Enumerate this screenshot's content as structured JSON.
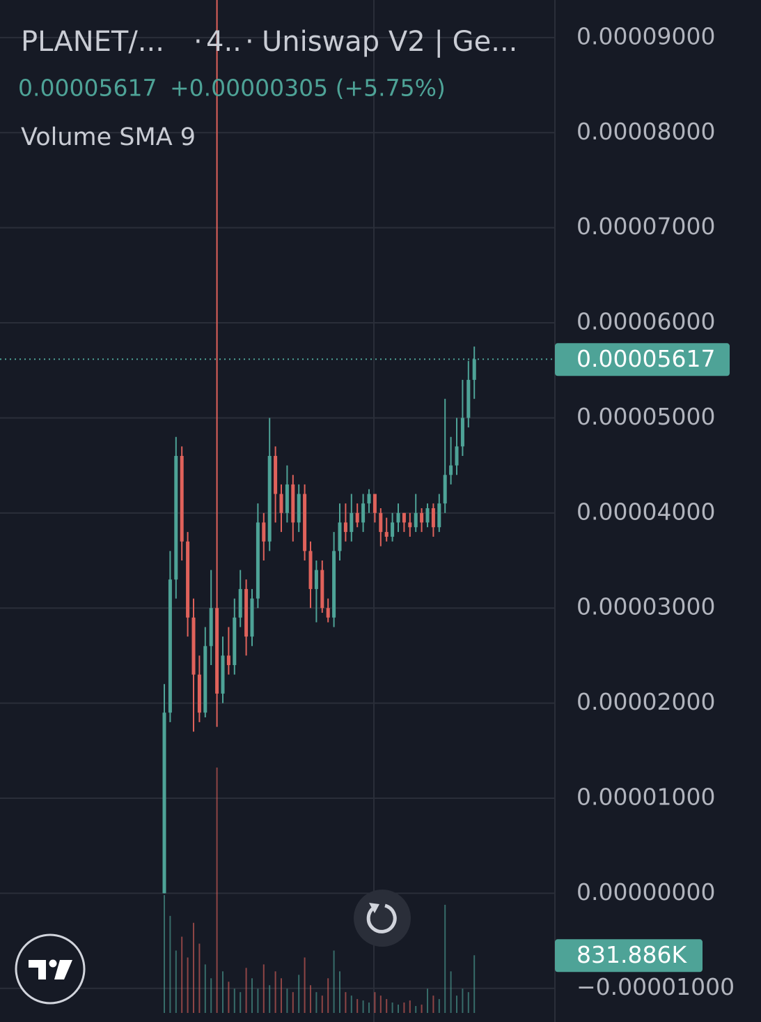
{
  "chart_data": {
    "type": "candlestick",
    "title": "PLANET/...",
    "interval": "4..",
    "exchange": "Uniswap V2 | Ge...",
    "last_price": "0.00005617",
    "change": "+0.00000305 (+5.75%)",
    "indicator": "Volume SMA 9",
    "price_label": "0.00005617",
    "volume_label": "831.886K",
    "up_color": "#4ea397",
    "down_color": "#e0625b",
    "grid": true,
    "ylim": [
      -1.2e-05,
      9.41e-05
    ],
    "yticks": [
      {
        "value": 9e-05,
        "label": "0.00009000"
      },
      {
        "value": 8e-05,
        "label": "0.00008000"
      },
      {
        "value": 7e-05,
        "label": "0.00007000"
      },
      {
        "value": 6e-05,
        "label": "0.00006000"
      },
      {
        "value": 5e-05,
        "label": "0.00005000"
      },
      {
        "value": 4e-05,
        "label": "0.00004000"
      },
      {
        "value": 3e-05,
        "label": "0.00003000"
      },
      {
        "value": 2e-05,
        "label": "0.00002000"
      },
      {
        "value": 1e-05,
        "label": "0.00001000"
      },
      {
        "value": 0,
        "label": "0.00000000"
      },
      {
        "value": -1e-05,
        "label": "−0.00001000"
      }
    ],
    "open": [
      0,
      1.9e-05,
      3.3e-05,
      4.6e-05,
      3.7e-05,
      2.9e-05,
      2.3e-05,
      1.9e-05,
      2.6e-05,
      3e-05,
      2.1e-05,
      2.5e-05,
      2.4e-05,
      2.9e-05,
      3.2e-05,
      2.7e-05,
      3.1e-05,
      3.9e-05,
      3.7e-05,
      4.6e-05,
      4.2e-05,
      4e-05,
      4.3e-05,
      3.9e-05,
      4.2e-05,
      3.6e-05,
      3.2e-05,
      3.4e-05,
      3e-05,
      2.9e-05,
      3.6e-05,
      3.9e-05,
      3.8e-05,
      4e-05,
      3.9e-05,
      4.1e-05,
      4.2e-05,
      4e-05,
      3.8e-05,
      3.75e-05,
      3.9e-05,
      4e-05,
      3.9e-05,
      3.85e-05,
      4e-05,
      3.9e-05,
      4.05e-05,
      3.85e-05,
      4.1e-05,
      4.4e-05,
      4.5e-05,
      4.7e-05,
      5e-05,
      5.4e-05
    ],
    "high": [
      2.2e-05,
      3.6e-05,
      4.8e-05,
      4.7e-05,
      3.8e-05,
      3.1e-05,
      2.5e-05,
      2.8e-05,
      3.4e-05,
      9.4e-05,
      2.7e-05,
      2.8e-05,
      3.1e-05,
      3.4e-05,
      3.3e-05,
      3.2e-05,
      4.1e-05,
      4e-05,
      5e-05,
      4.7e-05,
      4.3e-05,
      4.5e-05,
      4.4e-05,
      4.3e-05,
      4.3e-05,
      3.7e-05,
      3.5e-05,
      3.5e-05,
      3.1e-05,
      3.8e-05,
      4.1e-05,
      4.1e-05,
      4.2e-05,
      4.1e-05,
      4.2e-05,
      4.25e-05,
      4.2e-05,
      4.05e-05,
      3.95e-05,
      4e-05,
      4.1e-05,
      4e-05,
      4e-05,
      4.2e-05,
      4.05e-05,
      4.1e-05,
      4.1e-05,
      4.2e-05,
      5.2e-05,
      4.8e-05,
      5e-05,
      5.4e-05,
      5.6e-05,
      5.75e-05
    ],
    "low": [
      0,
      1.8e-05,
      3.1e-05,
      3.5e-05,
      2.7e-05,
      1.7e-05,
      1.8e-05,
      1.85e-05,
      2.4e-05,
      1.75e-05,
      2e-05,
      2.3e-05,
      2.3e-05,
      2.8e-05,
      2.5e-05,
      2.6e-05,
      3e-05,
      3.5e-05,
      3.6e-05,
      3.9e-05,
      3.8e-05,
      3.9e-05,
      3.7e-05,
      3.8e-05,
      3.5e-05,
      3e-05,
      2.85e-05,
      2.95e-05,
      2.85e-05,
      2.8e-05,
      3.5e-05,
      3.7e-05,
      3.7e-05,
      3.85e-05,
      3.8e-05,
      4e-05,
      3.9e-05,
      3.65e-05,
      3.7e-05,
      3.7e-05,
      3.8e-05,
      3.8e-05,
      3.75e-05,
      3.8e-05,
      3.8e-05,
      3.85e-05,
      3.75e-05,
      3.8e-05,
      4e-05,
      4.3e-05,
      4.4e-05,
      4.6e-05,
      4.9e-05,
      5.2e-05
    ],
    "close": [
      1.9e-05,
      3.3e-05,
      4.6e-05,
      3.7e-05,
      2.9e-05,
      2.3e-05,
      1.9e-05,
      2.6e-05,
      3e-05,
      2.1e-05,
      2.5e-05,
      2.4e-05,
      2.9e-05,
      3.2e-05,
      2.7e-05,
      3.1e-05,
      3.9e-05,
      3.7e-05,
      4.6e-05,
      4.2e-05,
      4e-05,
      4.3e-05,
      3.9e-05,
      4.2e-05,
      3.6e-05,
      3.2e-05,
      3.4e-05,
      3e-05,
      2.9e-05,
      3.6e-05,
      3.9e-05,
      3.8e-05,
      4e-05,
      3.9e-05,
      4.1e-05,
      4.2e-05,
      4e-05,
      3.8e-05,
      3.75e-05,
      3.9e-05,
      4e-05,
      3.9e-05,
      3.85e-05,
      4e-05,
      3.9e-05,
      4.05e-05,
      3.85e-05,
      4.1e-05,
      4.4e-05,
      4.5e-05,
      4.7e-05,
      5e-05,
      5.4e-05,
      5.617e-05
    ],
    "volume": [
      1700000,
      1400000,
      900000,
      1100000,
      800000,
      1300000,
      1000000,
      700000,
      500000,
      3540000,
      600000,
      450000,
      350000,
      300000,
      650000,
      500000,
      350000,
      700000,
      400000,
      600000,
      500000,
      350000,
      300000,
      550000,
      800000,
      400000,
      300000,
      250000,
      500000,
      900000,
      600000,
      300000,
      250000,
      200000,
      180000,
      150000,
      300000,
      250000,
      200000,
      150000,
      120000,
      150000,
      180000,
      100000,
      120000,
      350000,
      250000,
      200000,
      1560000,
      600000,
      250000,
      350000,
      300000,
      831886
    ]
  }
}
